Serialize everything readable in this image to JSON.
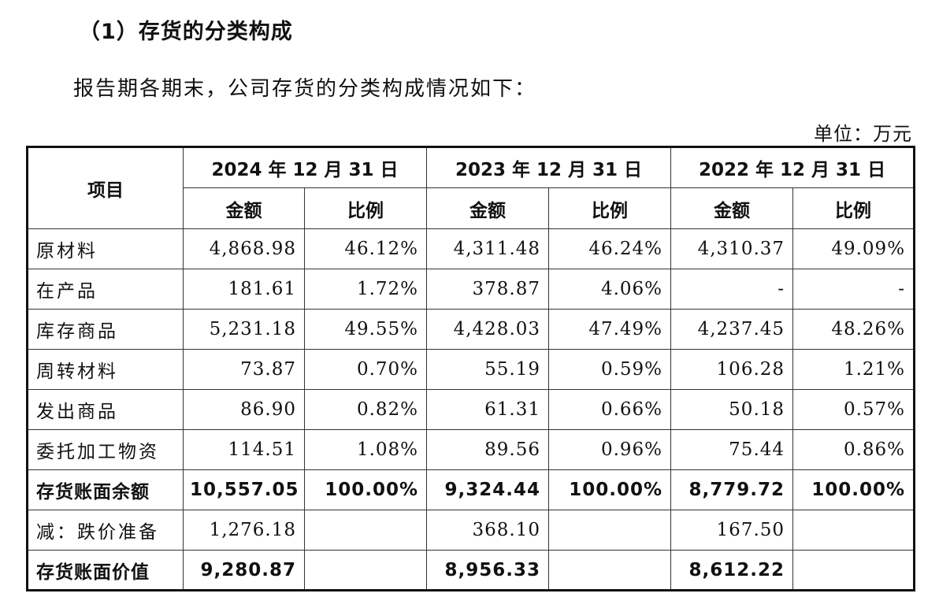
{
  "heading": "（1）存货的分类构成",
  "intro": "报告期各期末，公司存货的分类构成情况如下：",
  "unit": "单位：万元",
  "table": {
    "item_header": "项目",
    "periods": [
      "2024 年 12 月 31 日",
      "2023 年 12 月 31 日",
      "2022 年 12 月 31 日"
    ],
    "sub_headers": [
      "金额",
      "比例"
    ],
    "rows": [
      {
        "label": "原材料",
        "bold": false,
        "cells": [
          "4,868.98",
          "46.12%",
          "4,311.48",
          "46.24%",
          "4,310.37",
          "49.09%"
        ]
      },
      {
        "label": "在产品",
        "bold": false,
        "cells": [
          "181.61",
          "1.72%",
          "378.87",
          "4.06%",
          "-",
          "-"
        ]
      },
      {
        "label": "库存商品",
        "bold": false,
        "cells": [
          "5,231.18",
          "49.55%",
          "4,428.03",
          "47.49%",
          "4,237.45",
          "48.26%"
        ]
      },
      {
        "label": "周转材料",
        "bold": false,
        "cells": [
          "73.87",
          "0.70%",
          "55.19",
          "0.59%",
          "106.28",
          "1.21%"
        ]
      },
      {
        "label": "发出商品",
        "bold": false,
        "cells": [
          "86.90",
          "0.82%",
          "61.31",
          "0.66%",
          "50.18",
          "0.57%"
        ]
      },
      {
        "label": "委托加工物资",
        "bold": false,
        "cells": [
          "114.51",
          "1.08%",
          "89.56",
          "0.96%",
          "75.44",
          "0.86%"
        ]
      },
      {
        "label": "存货账面余额",
        "bold": true,
        "cells": [
          "10,557.05",
          "100.00%",
          "9,324.44",
          "100.00%",
          "8,779.72",
          "100.00%"
        ]
      },
      {
        "label": "减：跌价准备",
        "bold": false,
        "cells": [
          "1,276.18",
          "",
          "368.10",
          "",
          "167.50",
          ""
        ]
      },
      {
        "label": "存货账面价值",
        "bold": true,
        "cells": [
          "9,280.87",
          "",
          "8,956.33",
          "",
          "8,612.22",
          ""
        ]
      }
    ]
  }
}
